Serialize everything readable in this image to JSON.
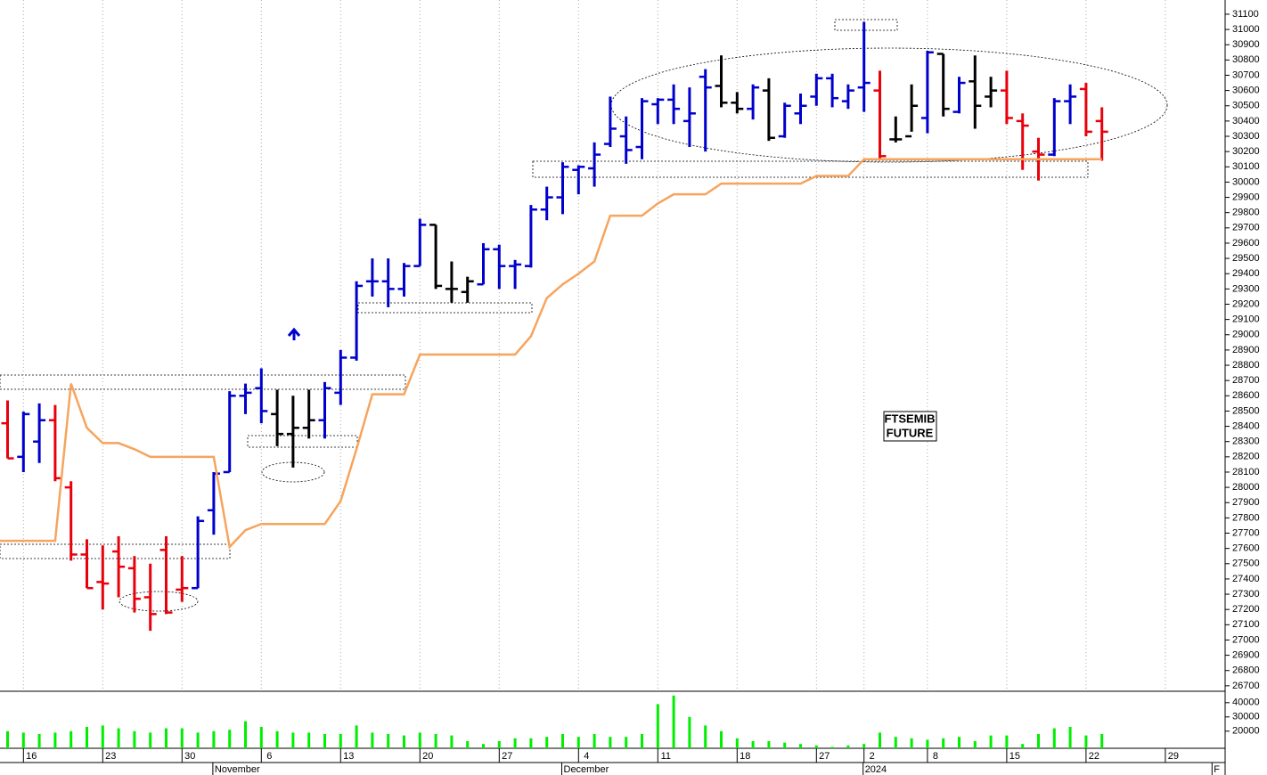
{
  "chart_data": {
    "type": "ohlc",
    "label_lines": [
      "FTSEMIB",
      "FUTURE"
    ],
    "categories": [
      null,
      "16",
      null,
      null,
      null,
      null,
      "23",
      null,
      null,
      null,
      null,
      "30",
      null,
      null,
      null,
      null,
      "6",
      null,
      null,
      null,
      null,
      "13",
      null,
      null,
      null,
      null,
      "20",
      null,
      null,
      null,
      null,
      "27",
      null,
      null,
      null,
      null,
      "4",
      null,
      null,
      null,
      null,
      "11",
      null,
      null,
      null,
      null,
      "18",
      null,
      null,
      null,
      null,
      "27",
      null,
      null,
      "2",
      null,
      null,
      null,
      "8",
      null,
      null,
      null,
      null,
      "15",
      null,
      null,
      null,
      null,
      "22",
      null,
      null,
      null,
      null,
      "29",
      null,
      null,
      null
    ],
    "month_labels": [
      {
        "label": "November",
        "index": 13
      },
      {
        "label": "December",
        "index": 35
      },
      {
        "label": "2024",
        "index": 54
      },
      {
        "label": "F",
        "index": 76
      }
    ],
    "open": [
      28420,
      28200,
      28300,
      28440,
      28000,
      27560,
      27380,
      27580,
      27470,
      27280,
      27590,
      27330,
      27340,
      27850,
      28100,
      28600,
      28650,
      28480,
      28350,
      28390,
      28440,
      28620,
      28850,
      29350,
      29350,
      29300,
      29450,
      29720,
      29300,
      29280,
      29330,
      29560,
      29450,
      29450,
      29820,
      29900,
      30080,
      30090,
      30250,
      30300,
      30230,
      30510,
      30540,
      30400,
      30690,
      30630,
      30520,
      30480,
      30600,
      30300,
      30450,
      30560,
      30680,
      30530,
      30620,
      30600,
      30280,
      30300,
      30420,
      30840,
      30460,
      30660,
      30560,
      30600,
      30400,
      30200,
      30180,
      30530,
      30610,
      30400,
      null,
      null,
      null,
      null,
      null,
      null,
      null
    ],
    "high": [
      28570,
      28497,
      28550,
      28540,
      28040,
      27660,
      27620,
      27680,
      27550,
      27500,
      27680,
      27550,
      27810,
      28100,
      28630,
      28680,
      28780,
      28640,
      28600,
      28640,
      28690,
      28900,
      29350,
      29500,
      29500,
      29470,
      29760,
      29720,
      29480,
      29380,
      29600,
      29590,
      29490,
      29850,
      29970,
      30130,
      30110,
      30260,
      30560,
      30430,
      30550,
      30550,
      30640,
      30620,
      30740,
      30830,
      30590,
      30640,
      30680,
      30520,
      30580,
      30710,
      30710,
      30640,
      31050,
      30730,
      30430,
      30640,
      30860,
      30840,
      30690,
      30830,
      30690,
      30730,
      30450,
      30290,
      30550,
      30640,
      30650,
      30490,
      null,
      null,
      null,
      null,
      null,
      null,
      null
    ],
    "low": [
      28190,
      28100,
      28160,
      28040,
      27520,
      27340,
      27200,
      27280,
      27180,
      27060,
      27170,
      27250,
      27340,
      27690,
      28100,
      28480,
      28420,
      28270,
      28130,
      28320,
      28320,
      28540,
      28830,
      29250,
      29180,
      29250,
      29450,
      29300,
      29210,
      29210,
      29330,
      29300,
      29300,
      29440,
      29750,
      29790,
      29920,
      29970,
      30230,
      30120,
      30150,
      30380,
      30380,
      30230,
      30200,
      30490,
      30450,
      30410,
      30270,
      30290,
      30380,
      30500,
      30490,
      30480,
      30460,
      30150,
      30260,
      30330,
      30320,
      30430,
      30450,
      30350,
      30490,
      30380,
      30080,
      30010,
      30170,
      30380,
      30300,
      30140,
      null,
      null,
      null,
      null,
      null,
      null,
      null
    ],
    "close": [
      28190,
      28480,
      28440,
      28060,
      27560,
      27340,
      27370,
      27480,
      27270,
      27170,
      27180,
      27340,
      27780,
      28090,
      28600,
      28620,
      28500,
      28350,
      28390,
      28440,
      28650,
      28850,
      29320,
      29350,
      29300,
      29450,
      29720,
      29320,
      29300,
      29350,
      29560,
      29450,
      29460,
      29820,
      29900,
      30100,
      30100,
      30180,
      30350,
      30210,
      30530,
      30540,
      30480,
      30450,
      30620,
      30520,
      30480,
      30620,
      30290,
      30500,
      30500,
      30680,
      30550,
      30600,
      30650,
      30170,
      30280,
      30500,
      30850,
      30480,
      30650,
      30500,
      30600,
      30420,
      30370,
      30180,
      30530,
      30560,
      30330,
      30330,
      null,
      null,
      null,
      null,
      null,
      null,
      null
    ],
    "bar_colors": [
      "#e8000b",
      "#0000cc",
      "#0000cc",
      "#e8000b",
      "#e8000b",
      "#e8000b",
      "#e8000b",
      "#e8000b",
      "#e8000b",
      "#e8000b",
      "#e8000b",
      "#e8000b",
      "#0000cc",
      "#0000cc",
      "#0000cc",
      "#0000cc",
      "#0000cc",
      "#000000",
      "#000000",
      "#000000",
      "#0000cc",
      "#0000cc",
      "#0000cc",
      "#0000cc",
      "#0000cc",
      "#0000cc",
      "#0000cc",
      "#000000",
      "#000000",
      "#000000",
      "#0000cc",
      "#0000cc",
      "#0000cc",
      "#0000cc",
      "#0000cc",
      "#0000cc",
      "#0000cc",
      "#0000cc",
      "#0000cc",
      "#0000cc",
      "#0000cc",
      "#0000cc",
      "#0000cc",
      "#0000cc",
      "#0000cc",
      "#000000",
      "#000000",
      "#0000cc",
      "#000000",
      "#0000cc",
      "#0000cc",
      "#0000cc",
      "#0000cc",
      "#0000cc",
      "#0000cc",
      "#e8000b",
      "#000000",
      "#000000",
      "#0000cc",
      "#000000",
      "#0000cc",
      "#000000",
      "#000000",
      "#e8000b",
      "#e8000b",
      "#e8000b",
      "#0000cc",
      "#0000cc",
      "#e8000b",
      "#e8000b",
      null,
      null,
      null,
      null,
      null,
      null,
      null
    ],
    "line_color": "#f6a45e",
    "line_values": [
      27650,
      27650,
      27650,
      27650,
      28680,
      28390,
      28290,
      28290,
      28250,
      28200,
      28200,
      28200,
      28200,
      28200,
      27610,
      27720,
      27760,
      27760,
      27760,
      27760,
      27760,
      27910,
      28250,
      28610,
      28610,
      28610,
      28870,
      28870,
      28870,
      28870,
      28870,
      28870,
      28870,
      28990,
      29240,
      29330,
      29400,
      29480,
      29780,
      29780,
      29780,
      29860,
      29920,
      29920,
      29920,
      29990,
      29990,
      29990,
      29990,
      29990,
      29990,
      30040,
      30040,
      30040,
      30150,
      30150,
      30150,
      30150,
      30150,
      30150,
      30150,
      30150,
      30150,
      30150,
      30150,
      30150,
      30150,
      30150,
      30150,
      30150,
      null,
      null,
      null,
      null,
      null,
      null,
      null
    ],
    "ylim": [
      26670,
      31193
    ],
    "yticks": [
      26700,
      26800,
      26900,
      27000,
      27100,
      27200,
      27300,
      27400,
      27500,
      27600,
      27700,
      27800,
      27900,
      28000,
      28100,
      28200,
      28300,
      28400,
      28500,
      28600,
      28700,
      28800,
      28900,
      29000,
      29100,
      29200,
      29300,
      29400,
      29500,
      29600,
      29700,
      29800,
      29900,
      30000,
      30100,
      30200,
      30300,
      30400,
      30500,
      30600,
      30700,
      30800,
      30900,
      31000,
      31100
    ],
    "volume": {
      "color": "#00ee00",
      "values": [
        20000,
        19000,
        18000,
        19000,
        20000,
        23000,
        24000,
        22000,
        20000,
        19000,
        22000,
        22000,
        19000,
        20000,
        21000,
        27000,
        23000,
        20000,
        19000,
        19000,
        18000,
        18000,
        24000,
        19000,
        18000,
        17000,
        19000,
        18000,
        17000,
        13000,
        11000,
        13000,
        15000,
        15000,
        16000,
        18000,
        16000,
        18000,
        16000,
        16000,
        18000,
        39000,
        45000,
        30000,
        24000,
        20000,
        15000,
        13000,
        13000,
        12000,
        11000,
        10000,
        9000,
        10000,
        11000,
        19000,
        16000,
        15000,
        14000,
        15000,
        16000,
        13000,
        17000,
        17000,
        11000,
        18000,
        22000,
        23000,
        17000,
        18000,
        null,
        null,
        null,
        null,
        null,
        null,
        null
      ],
      "ylim": [
        8000,
        48000
      ],
      "yticks": [
        20000,
        30000,
        40000
      ]
    }
  }
}
